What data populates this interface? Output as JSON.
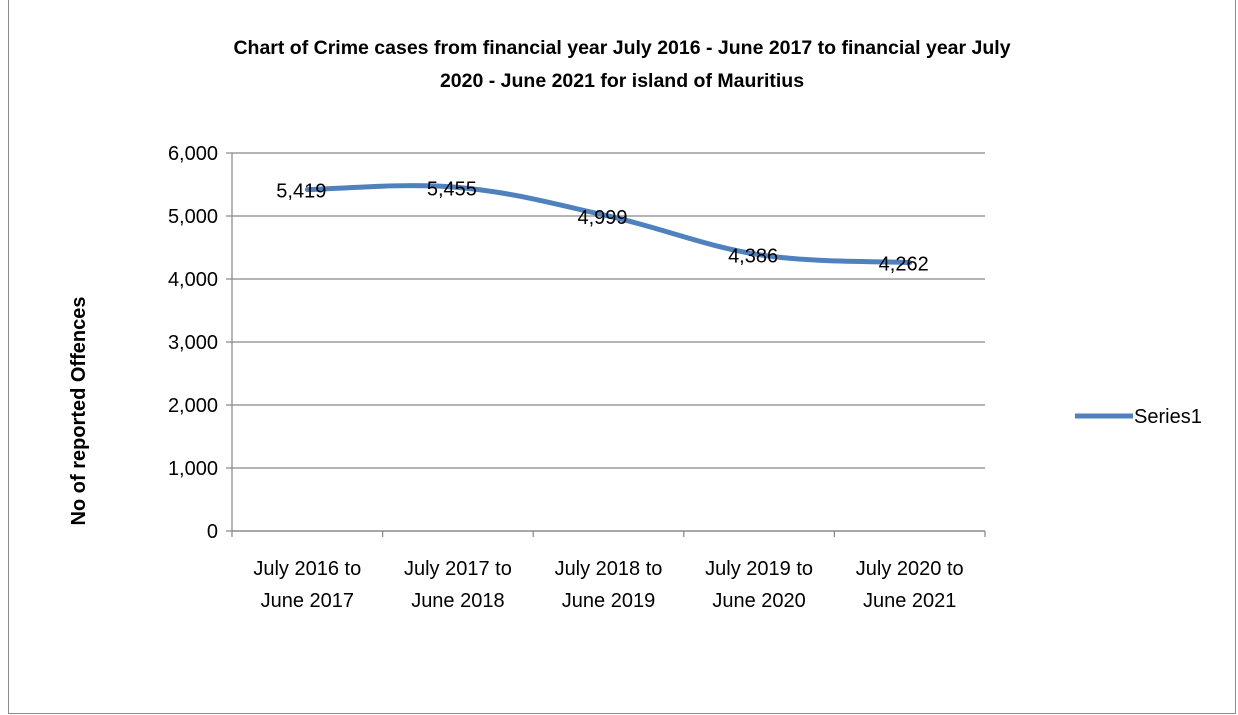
{
  "chart_data": {
    "type": "line",
    "title_lines": [
      "Chart of Crime cases from financial year July 2016 - June 2017  to financial year July",
      "2020 - June 2021   for island of Mauritius"
    ],
    "ylabel": "No of reported Offences",
    "xlabel": "",
    "categories": [
      [
        "July 2016 to",
        "June 2017"
      ],
      [
        "July 2017 to",
        "June 2018"
      ],
      [
        "July 2018 to",
        "June 2019"
      ],
      [
        "July 2019 to",
        "June 2020"
      ],
      [
        "July 2020 to",
        "June 2021"
      ]
    ],
    "series": [
      {
        "name": "Series1",
        "values": [
          5419,
          5455,
          4999,
          4386,
          4262
        ],
        "color": "#4f81bd"
      }
    ],
    "data_labels": [
      "5,419",
      "5,455",
      "4,999",
      "4,386",
      "4,262"
    ],
    "ylim": [
      0,
      6000
    ],
    "yticks": [
      0,
      1000,
      2000,
      3000,
      4000,
      5000,
      6000
    ],
    "ytick_labels": [
      "0",
      "1,000",
      "2,000",
      "3,000",
      "4,000",
      "5,000",
      "6,000"
    ],
    "grid": true,
    "legend_position": "right"
  }
}
